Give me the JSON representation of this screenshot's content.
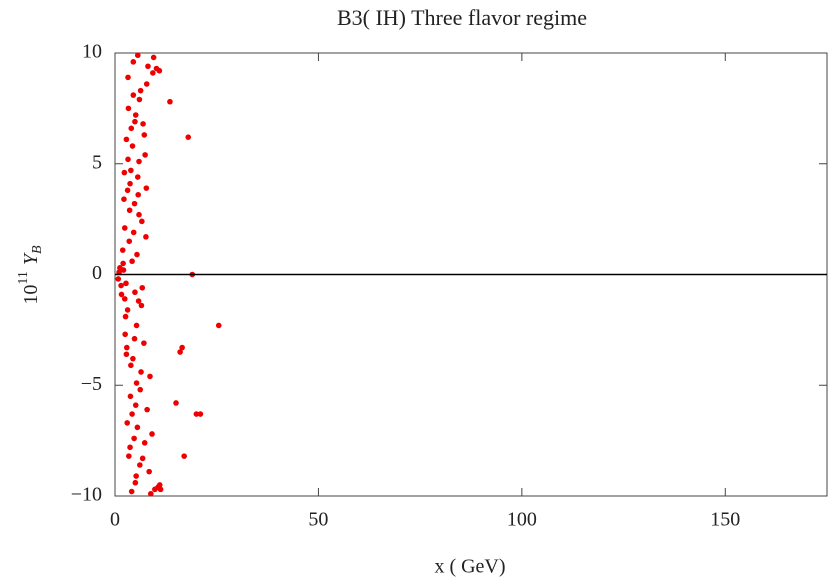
{
  "chart_data": {
    "type": "scatter",
    "title": "B3( IH)  Three flavor regime",
    "xlabel": "x  ( GeV)",
    "ylabel": {
      "base": "10",
      "exp": "11",
      "var": "Y",
      "sub": "B"
    },
    "xlim": [
      0,
      175
    ],
    "ylim": [
      -10,
      10
    ],
    "xticks": [
      0,
      50,
      100,
      150
    ],
    "yticks": [
      {
        "value": -10,
        "label": "−10"
      },
      {
        "value": -5,
        "label": "−5"
      },
      0,
      5,
      10
    ],
    "hline": 0,
    "series": [
      {
        "color": "#ee0000",
        "x": [
          3.2,
          4.5,
          5.1,
          2.8,
          6.3,
          7.4,
          3.9,
          4.8,
          5.6,
          2.4,
          8.1,
          6.9,
          3.5,
          4.2,
          5.9,
          7.7,
          2.1,
          9.3,
          4.9,
          3.1,
          6.6,
          5.3,
          2.7,
          7.1,
          4.4,
          3.7,
          8.6,
          5.8,
          1.9,
          6.2,
          4.0,
          3.3,
          7.9,
          5.5,
          2.5,
          4.7,
          6.8,
          3.8,
          5.2,
          9.8,
          2.2,
          4.1,
          7.3,
          3.6,
          5.7,
          6.4,
          2.9,
          8.4,
          4.6,
          3.0,
          5.0,
          7.6,
          2.6,
          6.0,
          4.3,
          10.2,
          3.4,
          5.4,
          8.8,
          2.3,
          6.7,
          4.8,
          3.9,
          7.2,
          5.1,
          1.6,
          9.1,
          4.5,
          3.2,
          6.1,
          5.9,
          2.8,
          7.8,
          4.2,
          3.7,
          10.6,
          5.6,
          2.0,
          6.5,
          4.9,
          1.2,
          0.8,
          1.5,
          1.0,
          2.4,
          3.1,
          9.5,
          10.9,
          11.2,
          5.3,
          13.5,
          18,
          19,
          25.5,
          16.5,
          16,
          15,
          20,
          21,
          17,
          11
        ],
        "values": [
          8.9,
          9.6,
          7.2,
          6.1,
          8.3,
          5.4,
          4.7,
          3.2,
          9.9,
          2.1,
          9.4,
          6.8,
          1.5,
          0.6,
          5.1,
          3.9,
          0.2,
          9.1,
          -0.8,
          -1.6,
          2.4,
          -2.3,
          -0.4,
          -3.1,
          -3.8,
          4.1,
          -4.6,
          -1.2,
          1.1,
          -5.2,
          6.6,
          7.5,
          -6.1,
          -6.9,
          -2.7,
          -7.4,
          -8.3,
          -5.5,
          -9.1,
          -9.7,
          3.4,
          -9.8,
          -7.6,
          2.9,
          3.6,
          -4.4,
          -3.3,
          -8.9,
          1.9,
          -6.7,
          -9.4,
          1.7,
          -1.9,
          7.9,
          5.8,
          9.3,
          -8.2,
          0.9,
          -9.9,
          4.6,
          -0.6,
          -2.9,
          -4.1,
          6.3,
          -5.9,
          -0.9,
          -7.2,
          8.1,
          5.2,
          -8.6,
          2.7,
          -3.6,
          8.6,
          -6.3,
          -7.8,
          -9.6,
          4.4,
          0.5,
          -1.4,
          6.9,
          0.3,
          -0.2,
          -0.5,
          0.1,
          -1.1,
          3.8,
          9.8,
          9.2,
          -9.7,
          -4.9,
          7.8,
          6.2,
          0.0,
          -2.3,
          -3.3,
          -3.5,
          -5.8,
          -6.3,
          -6.3,
          -8.2,
          -9.5
        ]
      }
    ]
  }
}
